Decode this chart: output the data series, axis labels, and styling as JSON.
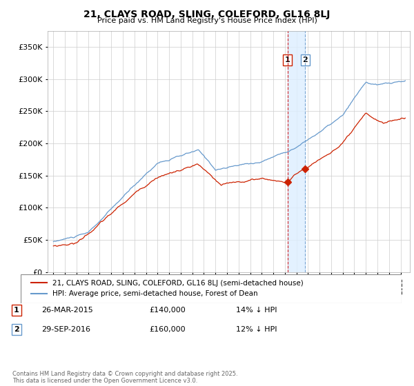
{
  "title": "21, CLAYS ROAD, SLING, COLEFORD, GL16 8LJ",
  "subtitle": "Price paid vs. HM Land Registry's House Price Index (HPI)",
  "legend_line1": "21, CLAYS ROAD, SLING, COLEFORD, GL16 8LJ (semi-detached house)",
  "legend_line2": "HPI: Average price, semi-detached house, Forest of Dean",
  "sale1_date": "26-MAR-2015",
  "sale1_price": 140000,
  "sale1_label": "14% ↓ HPI",
  "sale1_x": 2015.23,
  "sale1_y": 140000,
  "sale2_date": "29-SEP-2016",
  "sale2_price": 160000,
  "sale2_label": "12% ↓ HPI",
  "sale2_x": 2016.75,
  "sale2_y": 160000,
  "footnote": "Contains HM Land Registry data © Crown copyright and database right 2025.\nThis data is licensed under the Open Government Licence v3.0.",
  "hpi_color": "#6699cc",
  "price_color": "#cc2200",
  "vline1_color": "#cc0000",
  "vline2_color": "#6699cc",
  "shade_color": "#ddeeff",
  "ylim": [
    0,
    375000
  ],
  "yticks": [
    0,
    50000,
    100000,
    150000,
    200000,
    250000,
    300000,
    350000
  ],
  "xlim_left": 1994.5,
  "xlim_right": 2025.8
}
